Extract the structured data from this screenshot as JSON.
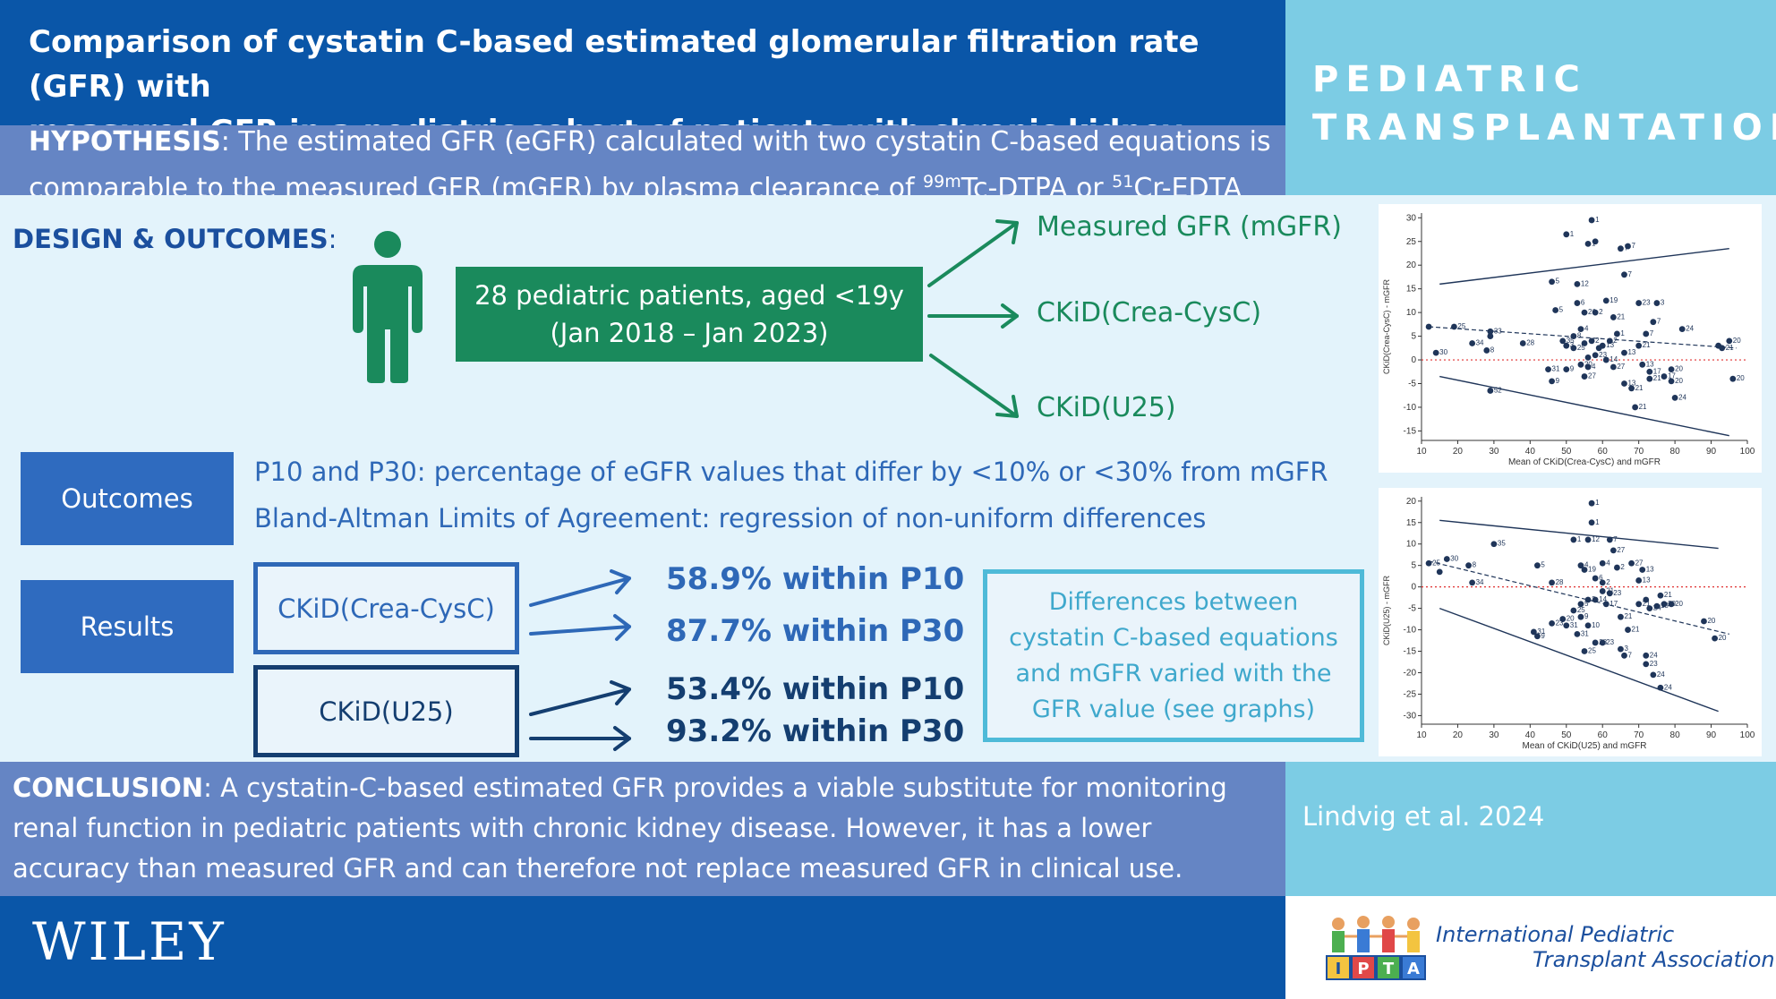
{
  "header": {
    "title_line1": "Comparison of cystatin C-based estimated glomerular filtration rate (GFR) with",
    "title_line2": "measured GFR in a pediatric cohort of patients with chronic kidney disease",
    "journal_line1": "PEDIATRIC",
    "journal_line2": "TRANSPLANTATION"
  },
  "hypothesis": {
    "label": "HYPOTHESIS",
    "line1": ": The estimated GFR (eGFR) calculated with two cystatin C-based equations is",
    "line2_a": "comparable to the measured GFR (mGFR) by plasma clearance of ",
    "sup1": "99m",
    "line2_b": "Tc-DTPA or ",
    "sup2": "51",
    "line2_c": "Cr-EDTA"
  },
  "design": {
    "label": "DESIGN & OUTCOMES",
    "colon": ":",
    "patients_line1": "28 pediatric patients, aged <19y",
    "patients_line2": "(Jan 2018 – Jan 2023)",
    "equations": [
      "Measured GFR (mGFR)",
      "CKiD(Crea-CysC)",
      "CKiD(U25)"
    ]
  },
  "outcomes": {
    "label": "Outcomes",
    "def1": "P10 and P30: percentage of eGFR values that differ by <10% or <30% from mGFR",
    "def2": "Bland-Altman Limits of Agreement: regression of non-uniform differences"
  },
  "results": {
    "label": "Results",
    "crea_label": "CKiD(Crea-CysC)",
    "u25_label": "CKiD(U25)",
    "crea_p10": "58.9% within P10",
    "crea_p30": "87.7% within P30",
    "u25_p10": "53.4% within P10",
    "u25_p30": "93.2% within P30",
    "note": "Differences between cystatin C-based equations and mGFR varied with the GFR value (see graphs)"
  },
  "plots": [
    {
      "ylabel": "CKiD(Crea-CysC) - mGFR",
      "xlabel": "Mean of CKiD(Crea-CysC) and mGFR",
      "xlim": [
        10,
        100
      ],
      "ylim": [
        -17,
        31
      ],
      "xticks": [
        10,
        20,
        30,
        40,
        50,
        60,
        70,
        80,
        90,
        100
      ],
      "yticks": [
        -15,
        -10,
        -5,
        0,
        5,
        10,
        15,
        20,
        25,
        30
      ],
      "upper_loa": [
        [
          15,
          16
        ],
        [
          95,
          23.5
        ]
      ],
      "lower_loa": [
        [
          15,
          -3.5
        ],
        [
          95,
          -16
        ]
      ],
      "trend": [
        [
          12,
          7
        ],
        [
          97,
          2.5
        ]
      ],
      "points": [
        [
          57,
          29.5,
          "1"
        ],
        [
          50,
          26.5,
          "1"
        ],
        [
          56,
          24.5,
          "1"
        ],
        [
          58,
          25,
          ""
        ],
        [
          65,
          23.5,
          "7"
        ],
        [
          67,
          24,
          "7"
        ],
        [
          66,
          18,
          "7"
        ],
        [
          46,
          16.5,
          "5"
        ],
        [
          53,
          16,
          "12"
        ],
        [
          19,
          7,
          "25"
        ],
        [
          12,
          7,
          ""
        ],
        [
          14,
          1.5,
          "30"
        ],
        [
          24,
          3.5,
          "34"
        ],
        [
          28,
          2,
          "8"
        ],
        [
          29,
          6,
          "33"
        ],
        [
          29,
          5,
          ""
        ],
        [
          38,
          3.5,
          "28"
        ],
        [
          29,
          -6.5,
          "52"
        ],
        [
          47,
          10.5,
          "5"
        ],
        [
          53,
          12,
          "6"
        ],
        [
          55,
          10,
          "26"
        ],
        [
          58,
          10,
          "2"
        ],
        [
          61,
          12.5,
          "19"
        ],
        [
          63,
          9,
          "21"
        ],
        [
          70,
          12,
          "23"
        ],
        [
          75,
          12,
          "3"
        ],
        [
          74,
          8,
          "7"
        ],
        [
          72,
          5.5,
          "7"
        ],
        [
          82,
          6.5,
          "24"
        ],
        [
          92,
          3,
          ""
        ],
        [
          95,
          4,
          "20"
        ],
        [
          93,
          2.5,
          "21"
        ],
        [
          70,
          3,
          "21"
        ],
        [
          64,
          5.5,
          "1"
        ],
        [
          54,
          6.5,
          "4"
        ],
        [
          52,
          5,
          "8"
        ],
        [
          49,
          4,
          "35"
        ],
        [
          50,
          3,
          "3"
        ],
        [
          52,
          2.5,
          "25"
        ],
        [
          55,
          3.5,
          ""
        ],
        [
          57,
          4,
          "2"
        ],
        [
          60,
          3,
          "13"
        ],
        [
          62,
          4,
          "2"
        ],
        [
          58,
          1,
          "23"
        ],
        [
          61,
          0,
          "14"
        ],
        [
          63,
          -1.5,
          "27"
        ],
        [
          54,
          -1,
          "20"
        ],
        [
          50,
          -2,
          "9"
        ],
        [
          45,
          -2,
          "31"
        ],
        [
          46,
          -4.5,
          "9"
        ],
        [
          55,
          -3.5,
          "27"
        ],
        [
          56,
          -1.5,
          "4"
        ],
        [
          66,
          -5,
          "13"
        ],
        [
          68,
          -6,
          "21"
        ],
        [
          71,
          -1,
          "13"
        ],
        [
          73,
          -2.5,
          "17"
        ],
        [
          73,
          -4,
          "21"
        ],
        [
          77,
          -3.5,
          "17"
        ],
        [
          79,
          -2,
          "20"
        ],
        [
          79,
          -4.5,
          "20"
        ],
        [
          69,
          -10,
          "21"
        ],
        [
          80,
          -8,
          "24"
        ],
        [
          96,
          -4,
          "20"
        ],
        [
          66,
          1.5,
          "13"
        ],
        [
          59,
          2.5,
          ""
        ],
        [
          56,
          0.5,
          ""
        ]
      ]
    },
    {
      "ylabel": "CKiD(U25) - mGFR",
      "xlabel": "Mean of CKiD(U25) and mGFR",
      "xlim": [
        10,
        100
      ],
      "ylim": [
        -32,
        21
      ],
      "xticks": [
        10,
        20,
        30,
        40,
        50,
        60,
        70,
        80,
        90,
        100
      ],
      "yticks": [
        -30,
        -25,
        -20,
        -15,
        -10,
        -5,
        0,
        5,
        10,
        15,
        20
      ],
      "upper_loa": [
        [
          15,
          15.5
        ],
        [
          92,
          9
        ]
      ],
      "lower_loa": [
        [
          15,
          -5
        ],
        [
          92,
          -29
        ]
      ],
      "trend": [
        [
          12,
          6
        ],
        [
          95,
          -11
        ]
      ],
      "points": [
        [
          57,
          19.5,
          "1"
        ],
        [
          57,
          15,
          "1"
        ],
        [
          52,
          11,
          "1"
        ],
        [
          56,
          11,
          "12"
        ],
        [
          62,
          11,
          "7"
        ],
        [
          63,
          8.5,
          "27"
        ],
        [
          30,
          10,
          "35"
        ],
        [
          12,
          5.5,
          "25"
        ],
        [
          17,
          6.5,
          "30"
        ],
        [
          23,
          5,
          "8"
        ],
        [
          15,
          3.5,
          ""
        ],
        [
          24,
          1,
          "34"
        ],
        [
          42,
          5,
          "5"
        ],
        [
          46,
          1,
          "28"
        ],
        [
          54,
          5,
          "4"
        ],
        [
          55,
          4,
          "19"
        ],
        [
          60,
          5.5,
          "4"
        ],
        [
          64,
          4.5,
          "2"
        ],
        [
          68,
          5.5,
          "27"
        ],
        [
          71,
          4,
          "13"
        ],
        [
          70,
          1.5,
          "13"
        ],
        [
          58,
          2,
          "6"
        ],
        [
          60,
          -1,
          "21"
        ],
        [
          62,
          -1.5,
          "23"
        ],
        [
          56,
          -3,
          "2"
        ],
        [
          58,
          -3,
          "14"
        ],
        [
          54,
          -4,
          "5"
        ],
        [
          52,
          -5.5,
          "25"
        ],
        [
          54,
          -7,
          "9"
        ],
        [
          56,
          -9,
          "10"
        ],
        [
          49,
          -7.5,
          "20"
        ],
        [
          50,
          -9,
          "31"
        ],
        [
          46,
          -8.5,
          "23"
        ],
        [
          41,
          -10.5,
          "31"
        ],
        [
          42,
          -11.5,
          "9"
        ],
        [
          53,
          -11,
          "31"
        ],
        [
          60,
          -13,
          "23"
        ],
        [
          58,
          -13,
          "28"
        ],
        [
          55,
          -15,
          "25"
        ],
        [
          67,
          -10,
          "21"
        ],
        [
          70,
          -4,
          "21"
        ],
        [
          73,
          -5,
          "24"
        ],
        [
          75,
          -4.5,
          "13"
        ],
        [
          77,
          -4,
          "20"
        ],
        [
          76,
          -2,
          "21"
        ],
        [
          79,
          -4,
          "20"
        ],
        [
          88,
          -8,
          "20"
        ],
        [
          91,
          -12,
          "20"
        ],
        [
          66,
          -16,
          "7"
        ],
        [
          65,
          -14.5,
          "3"
        ],
        [
          72,
          -16,
          "24"
        ],
        [
          72,
          -18,
          "23"
        ],
        [
          74,
          -20.5,
          "24"
        ],
        [
          76,
          -23.5,
          "24"
        ],
        [
          60,
          1,
          "2"
        ],
        [
          61,
          -4,
          "17"
        ],
        [
          72,
          -3,
          ""
        ],
        [
          65,
          -7,
          "21"
        ]
      ]
    }
  ],
  "conclusion": {
    "label": "CONCLUSION",
    "text_line1": ": A cystatin-C-based estimated GFR provides a viable substitute for monitoring",
    "text_line2": "renal function in pediatric patients with chronic kidney disease. However, it has a lower",
    "text_line3": "accuracy than measured GFR and can therefore not replace measured GFR in clinical use."
  },
  "citation": "Lindvig et al. 2024",
  "footer": {
    "publisher": "WILEY",
    "assoc_line1": "International Pediatric",
    "assoc_line2": "Transplant Association",
    "logo_letters": [
      "I",
      "P",
      "T",
      "A"
    ]
  },
  "colors": {
    "dark_blue": "#0a56a8",
    "mid_blue": "#6585c4",
    "light_cyan": "#7ccce4",
    "green": "#1a8a5c",
    "navy": "#143e70"
  }
}
